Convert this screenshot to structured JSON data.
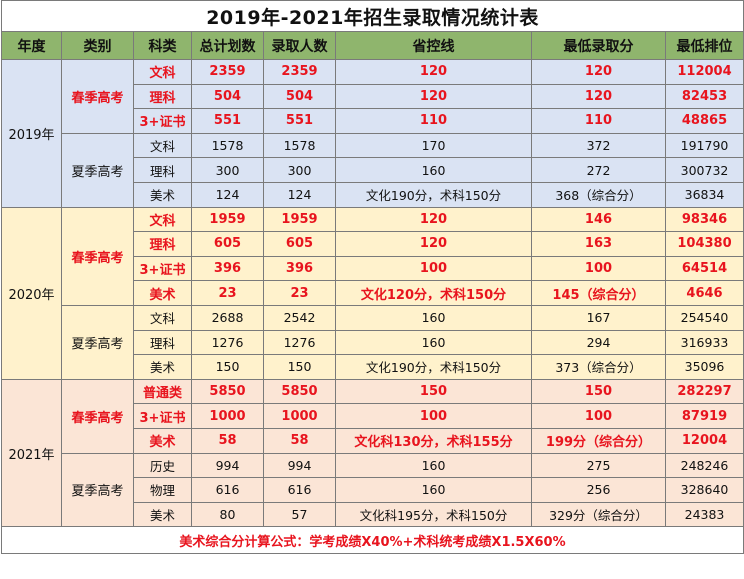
{
  "title": "2019年-2021年招生录取情况统计表",
  "headers": [
    "年度",
    "类别",
    "科类",
    "总计划数",
    "录取人数",
    "省控线",
    "最低录取分",
    "最低排位"
  ],
  "years": [
    {
      "year": "2019年",
      "bg": "bg19",
      "groups": [
        {
          "category": "春季高考",
          "highlight": true,
          "rows": [
            [
              "文科",
              "2359",
              "2359",
              "120",
              "120",
              "112004"
            ],
            [
              "理科",
              "504",
              "504",
              "120",
              "120",
              "82453"
            ],
            [
              "3+证书",
              "551",
              "551",
              "110",
              "110",
              "48865"
            ]
          ]
        },
        {
          "category": "夏季高考",
          "highlight": false,
          "rows": [
            [
              "文科",
              "1578",
              "1578",
              "170",
              "372",
              "191790"
            ],
            [
              "理科",
              "300",
              "300",
              "160",
              "272",
              "300732"
            ],
            [
              "美术",
              "124",
              "124",
              "文化190分，术科150分",
              "368（综合分）",
              "36834"
            ]
          ]
        }
      ]
    },
    {
      "year": "2020年",
      "bg": "bg20",
      "groups": [
        {
          "category": "春季高考",
          "highlight": true,
          "rows": [
            [
              "文科",
              "1959",
              "1959",
              "120",
              "146",
              "98346"
            ],
            [
              "理科",
              "605",
              "605",
              "120",
              "163",
              "104380"
            ],
            [
              "3+证书",
              "396",
              "396",
              "100",
              "100",
              "64514"
            ],
            [
              "美术",
              "23",
              "23",
              "文化120分，术科150分",
              "145（综合分）",
              "4646"
            ]
          ]
        },
        {
          "category": "夏季高考",
          "highlight": false,
          "rows": [
            [
              "文科",
              "2688",
              "2542",
              "160",
              "167",
              "254540"
            ],
            [
              "理科",
              "1276",
              "1276",
              "160",
              "294",
              "316933"
            ],
            [
              "美术",
              "150",
              "150",
              "文化190分，术科150分",
              "373（综合分）",
              "35096"
            ]
          ]
        }
      ]
    },
    {
      "year": "2021年",
      "bg": "bg21",
      "groups": [
        {
          "category": "春季高考",
          "highlight": true,
          "rows": [
            [
              "普通类",
              "5850",
              "5850",
              "150",
              "150",
              "282297"
            ],
            [
              "3+证书",
              "1000",
              "1000",
              "100",
              "100",
              "87919"
            ],
            [
              "美术",
              "58",
              "58",
              "文化科130分，术科155分",
              "199分（综合分）",
              "12004"
            ]
          ]
        },
        {
          "category": "夏季高考",
          "highlight": false,
          "rows": [
            [
              "历史",
              "994",
              "994",
              "160",
              "275",
              "248246"
            ],
            [
              "物理",
              "616",
              "616",
              "160",
              "256",
              "328640"
            ],
            [
              "美术",
              "80",
              "57",
              "文化科195分，术科150分",
              "329分（综合分）",
              "24383"
            ]
          ]
        }
      ]
    }
  ],
  "footnote": "美术综合分计算公式：学考成绩X40%+术科统考成绩X1.5X60%"
}
